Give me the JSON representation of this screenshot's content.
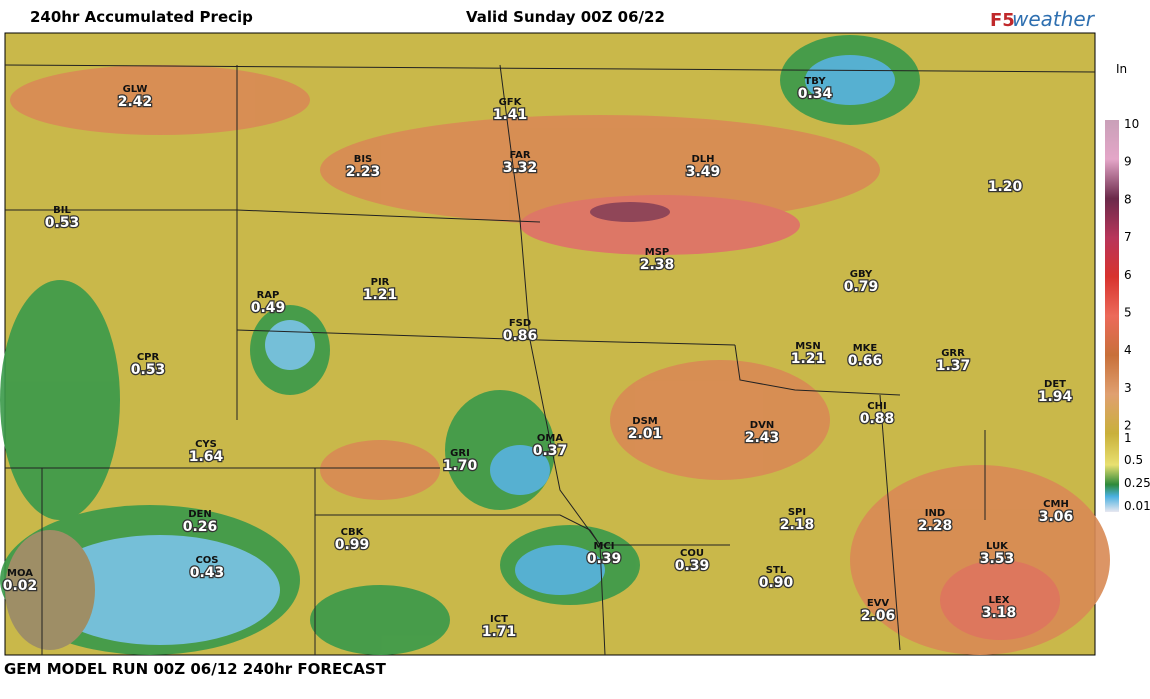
{
  "header": {
    "title": "240hr Accumulated Precip",
    "valid": "Valid Sunday 00Z 06/22",
    "brand_prefix": "F5",
    "brand": "weather"
  },
  "footer": "GEM MODEL RUN 00Z 06/12 240hr FORECAST",
  "legend": {
    "unit": "In",
    "ticks": [
      "10",
      "9",
      "8",
      "7",
      "6",
      "5",
      "4",
      "3",
      "2",
      "1",
      "0.5",
      "0.25",
      "0.01"
    ]
  },
  "stations": [
    {
      "code": "GLW",
      "value": "2.42"
    },
    {
      "code": "GFK",
      "value": "1.41"
    },
    {
      "code": "TBY",
      "value": "0.34"
    },
    {
      "code": "BIS",
      "value": "2.23"
    },
    {
      "code": "FAR",
      "value": "3.32"
    },
    {
      "code": "DLH",
      "value": "3.49"
    },
    {
      "value": "1.20"
    },
    {
      "code": "BIL",
      "value": "0.53"
    },
    {
      "code": "MSP",
      "value": "2.38"
    },
    {
      "code": "RAP",
      "value": "0.49"
    },
    {
      "code": "PIR",
      "value": "1.21"
    },
    {
      "code": "GBY",
      "value": "0.79"
    },
    {
      "code": "FSD",
      "value": "0.86"
    },
    {
      "code": "MSN",
      "value": "1.21"
    },
    {
      "code": "MKE",
      "value": "0.66"
    },
    {
      "code": "GRR",
      "value": "1.37"
    },
    {
      "code": "CPR",
      "value": "0.53"
    },
    {
      "code": "DET",
      "value": "1.94"
    },
    {
      "code": "CHI",
      "value": "0.88"
    },
    {
      "code": "DSM",
      "value": "2.01"
    },
    {
      "code": "DVN",
      "value": "2.43"
    },
    {
      "code": "OMA",
      "value": "0.37"
    },
    {
      "code": "CYS",
      "value": "1.64"
    },
    {
      "code": "GRI",
      "value": "1.70"
    },
    {
      "code": "DEN",
      "value": "0.26"
    },
    {
      "code": "IND",
      "value": "2.28"
    },
    {
      "code": "CMH",
      "value": "3.06"
    },
    {
      "code": "SPI",
      "value": "2.18"
    },
    {
      "code": "CBK",
      "value": "0.99"
    },
    {
      "code": "MCI",
      "value": "0.39"
    },
    {
      "code": "COU",
      "value": "0.39"
    },
    {
      "code": "LUK",
      "value": "3.53"
    },
    {
      "code": "COS",
      "value": "0.43"
    },
    {
      "code": "STL",
      "value": "0.90"
    },
    {
      "code": "MOA",
      "value": "0.02"
    },
    {
      "code": "EVV",
      "value": "2.06"
    },
    {
      "code": "LEX",
      "value": "3.18"
    },
    {
      "code": "ICT",
      "value": "1.71"
    }
  ]
}
